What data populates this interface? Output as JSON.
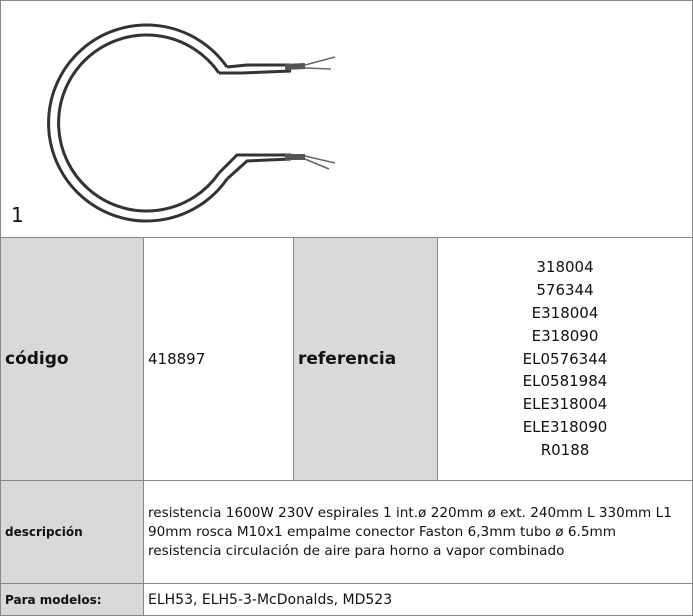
{
  "image": {
    "label": "1"
  },
  "table": {
    "codigo_label": "código",
    "codigo": "418897",
    "referencia_label": "referencia",
    "referencias": [
      "318004",
      "576344",
      "E318004",
      "E318090",
      "EL0576344",
      "EL0581984",
      "ELE318004",
      "ELE318090",
      "R0188"
    ],
    "descripcion_label": "descripción",
    "descripcion": "resistencia  1600W 230V espirales 1 int.ø 220mm ø ext. 240mm L 330mm L1 90mm rosca M10x1 empalme conector Faston 6,3mm tubo ø 6.5mm resistencia circulación de aire para horno a vapor combinado",
    "modelos_label": "Para modelos:",
    "modelos": "ELH53, ELH5-3-McDonalds, MD523"
  }
}
